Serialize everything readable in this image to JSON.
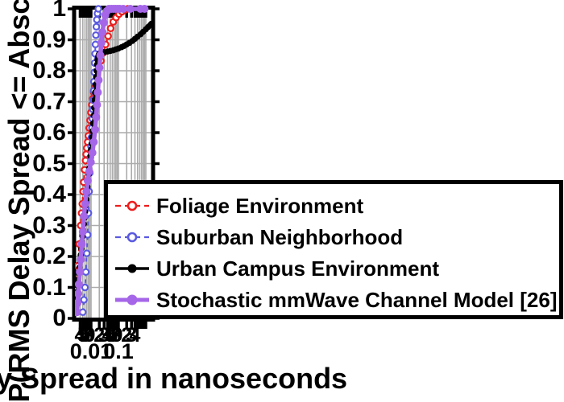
{
  "chart_data": {
    "type": "line",
    "subtype": "cdf",
    "title": "",
    "xlabel": "RMS Delay Spread in nanoseconds",
    "ylabel": "P(RMS Delay Spread <= Abscissa)",
    "grid": true,
    "x_axis": {
      "scale": "log",
      "range_ns": [
        0.0028,
        1.6
      ],
      "major_ticks": [
        0.01,
        0.1,
        1
      ],
      "major_tick_labels": [
        {
          "value": 0.01,
          "label": "0.01"
        },
        {
          "value": 0.1,
          "label": "0.1"
        }
      ],
      "minor_ticks": [
        0.004,
        0.005,
        0.006,
        0.007,
        0.008,
        0.009,
        0.02,
        0.03,
        0.04,
        0.05,
        0.06,
        0.07,
        0.08,
        0.09,
        0.2,
        0.3,
        0.4,
        0.5,
        0.6,
        0.7,
        0.8,
        0.9
      ],
      "minor_tick_labels": [
        {
          "value": 0.004,
          "label": "4"
        },
        {
          "value": 0.005,
          "label": "5"
        },
        {
          "value": 0.006,
          "label": "6"
        },
        {
          "value": 0.007,
          "label": "7"
        },
        {
          "value": 0.008,
          "label": "8"
        },
        {
          "value": 0.009,
          "label": "9"
        },
        {
          "value": 0.02,
          "label": "2"
        },
        {
          "value": 0.03,
          "label": "3"
        },
        {
          "value": 0.04,
          "label": "4"
        },
        {
          "value": 0.05,
          "label": "5"
        },
        {
          "value": 0.06,
          "label": "6"
        },
        {
          "value": 0.07,
          "label": "7"
        },
        {
          "value": 0.08,
          "label": "8"
        },
        {
          "value": 0.09,
          "label": "9"
        },
        {
          "value": 0.2,
          "label": "2"
        },
        {
          "value": 0.3,
          "label": "3"
        },
        {
          "value": 0.4,
          "label": "4"
        }
      ]
    },
    "y_axis": {
      "scale": "linear",
      "range": [
        0,
        1
      ],
      "ticks": [
        0,
        0.1,
        0.2,
        0.3,
        0.4,
        0.5,
        0.6,
        0.7,
        0.8,
        0.9,
        1
      ],
      "tick_labels": [
        "0",
        "0.1",
        "0.2",
        "0.3",
        "0.4",
        "0.5",
        "0.6",
        "0.7",
        "0.8",
        "0.9",
        "1"
      ]
    },
    "colors": {
      "foliage": "#ee1c1c",
      "suburban": "#5a5ae0",
      "urban": "#000000",
      "stochastic": "#a566e8",
      "grid": "#ababab",
      "frame": "#000000"
    },
    "legend_position": "lower-right-overlapping-plot",
    "series": [
      {
        "name": "Foliage Environment",
        "color": "#ee1c1c",
        "line": "dashed",
        "marker": "open-circle",
        "points": [
          [
            0.003,
            0.1
          ],
          [
            0.0033,
            0.17
          ],
          [
            0.0037,
            0.24
          ],
          [
            0.0042,
            0.3
          ],
          [
            0.0045,
            0.34
          ],
          [
            0.0048,
            0.37
          ],
          [
            0.0051,
            0.41
          ],
          [
            0.0054,
            0.44
          ],
          [
            0.0058,
            0.48
          ],
          [
            0.0063,
            0.51
          ],
          [
            0.0066,
            0.53
          ],
          [
            0.007,
            0.55
          ],
          [
            0.0075,
            0.57
          ],
          [
            0.008,
            0.59
          ],
          [
            0.0086,
            0.615
          ],
          [
            0.0092,
            0.64
          ],
          [
            0.0099,
            0.665
          ],
          [
            0.0107,
            0.69
          ],
          [
            0.0115,
            0.71
          ],
          [
            0.0125,
            0.73
          ],
          [
            0.0137,
            0.75
          ],
          [
            0.0152,
            0.77
          ],
          [
            0.017,
            0.79
          ],
          [
            0.0195,
            0.81
          ],
          [
            0.023,
            0.832
          ],
          [
            0.028,
            0.858
          ],
          [
            0.034,
            0.885
          ],
          [
            0.042,
            0.912
          ],
          [
            0.052,
            0.937
          ],
          [
            0.065,
            0.958
          ],
          [
            0.082,
            0.972
          ],
          [
            0.105,
            0.983
          ],
          [
            0.135,
            0.991
          ],
          [
            0.175,
            0.997
          ],
          [
            0.22,
            1.0
          ]
        ]
      },
      {
        "name": "Suburban Neighborhood",
        "color": "#5a5ae0",
        "line": "dashed",
        "marker": "open-circle",
        "points": [
          [
            0.005,
            0.02
          ],
          [
            0.0055,
            0.06
          ],
          [
            0.006,
            0.1
          ],
          [
            0.0065,
            0.15
          ],
          [
            0.007,
            0.21
          ],
          [
            0.0075,
            0.27
          ],
          [
            0.008,
            0.34
          ],
          [
            0.0085,
            0.41
          ],
          [
            0.009,
            0.47
          ],
          [
            0.0095,
            0.52
          ],
          [
            0.01,
            0.555
          ],
          [
            0.0104,
            0.585
          ],
          [
            0.0108,
            0.615
          ],
          [
            0.0112,
            0.645
          ],
          [
            0.0116,
            0.675
          ],
          [
            0.012,
            0.705
          ],
          [
            0.0124,
            0.735
          ],
          [
            0.0128,
            0.765
          ],
          [
            0.0132,
            0.795
          ],
          [
            0.0136,
            0.825
          ],
          [
            0.014,
            0.855
          ],
          [
            0.0145,
            0.885
          ],
          [
            0.015,
            0.915
          ],
          [
            0.0156,
            0.942
          ],
          [
            0.0163,
            0.965
          ],
          [
            0.0172,
            0.985
          ],
          [
            0.0185,
            1.0
          ]
        ]
      },
      {
        "name": "Urban Campus Environment",
        "color": "#000000",
        "line": "solid",
        "marker": "filled-circle",
        "points": [
          [
            0.003,
            0.065
          ],
          [
            0.0031,
            0.085
          ],
          [
            0.0032,
            0.105
          ],
          [
            0.0034,
            0.125
          ],
          [
            0.0036,
            0.145
          ],
          [
            0.0038,
            0.165
          ],
          [
            0.004,
            0.185
          ],
          [
            0.0042,
            0.205
          ],
          [
            0.0044,
            0.225
          ],
          [
            0.0047,
            0.245
          ],
          [
            0.0049,
            0.265
          ],
          [
            0.0052,
            0.285
          ],
          [
            0.0055,
            0.305
          ],
          [
            0.0058,
            0.325
          ],
          [
            0.0061,
            0.345
          ],
          [
            0.0064,
            0.365
          ],
          [
            0.0067,
            0.385
          ],
          [
            0.007,
            0.405
          ],
          [
            0.0074,
            0.425
          ],
          [
            0.0078,
            0.445
          ],
          [
            0.0082,
            0.465
          ],
          [
            0.0086,
            0.485
          ],
          [
            0.009,
            0.505
          ],
          [
            0.0095,
            0.525
          ],
          [
            0.0099,
            0.545
          ],
          [
            0.0104,
            0.565
          ],
          [
            0.0109,
            0.585
          ],
          [
            0.0114,
            0.605
          ],
          [
            0.0119,
            0.63
          ],
          [
            0.0124,
            0.655
          ],
          [
            0.0129,
            0.68
          ],
          [
            0.0134,
            0.705
          ],
          [
            0.014,
            0.73
          ],
          [
            0.0146,
            0.755
          ],
          [
            0.0152,
            0.78
          ],
          [
            0.0158,
            0.8
          ],
          [
            0.0165,
            0.82
          ],
          [
            0.0172,
            0.835
          ],
          [
            0.018,
            0.845
          ],
          [
            0.019,
            0.852
          ],
          [
            0.0205,
            0.856
          ],
          [
            0.0225,
            0.858
          ],
          [
            0.025,
            0.859
          ],
          [
            0.03,
            0.86
          ],
          [
            0.04,
            0.862
          ],
          [
            0.05,
            0.864
          ],
          [
            0.065,
            0.866
          ],
          [
            0.08,
            0.869
          ],
          [
            0.1,
            0.872
          ],
          [
            0.13,
            0.876
          ],
          [
            0.16,
            0.88
          ],
          [
            0.2,
            0.885
          ],
          [
            0.25,
            0.89
          ],
          [
            0.32,
            0.896
          ],
          [
            0.4,
            0.903
          ],
          [
            0.5,
            0.91
          ],
          [
            0.65,
            0.918
          ],
          [
            0.8,
            0.926
          ],
          [
            1.0,
            0.934
          ],
          [
            1.2,
            0.941
          ],
          [
            1.45,
            0.948
          ],
          [
            1.6,
            0.952
          ]
        ]
      },
      {
        "name": "Stochastic mmWave Channel Model [26]",
        "color": "#a566e8",
        "line": "solid-thick",
        "marker": "filled-circle-large",
        "points": [
          [
            0.003,
            0.02
          ],
          [
            0.0032,
            0.05
          ],
          [
            0.0034,
            0.08
          ],
          [
            0.0036,
            0.11
          ],
          [
            0.0039,
            0.15
          ],
          [
            0.0042,
            0.19
          ],
          [
            0.0046,
            0.24
          ],
          [
            0.005,
            0.28
          ],
          [
            0.0055,
            0.33
          ],
          [
            0.0061,
            0.37
          ],
          [
            0.0068,
            0.41
          ],
          [
            0.0076,
            0.445
          ],
          [
            0.0086,
            0.475
          ],
          [
            0.0098,
            0.505
          ],
          [
            0.0112,
            0.535
          ],
          [
            0.0126,
            0.57
          ],
          [
            0.014,
            0.61
          ],
          [
            0.0153,
            0.65
          ],
          [
            0.0165,
            0.69
          ],
          [
            0.0177,
            0.73
          ],
          [
            0.0189,
            0.77
          ],
          [
            0.0202,
            0.81
          ],
          [
            0.0218,
            0.85
          ],
          [
            0.0238,
            0.89
          ],
          [
            0.0262,
            0.925
          ],
          [
            0.0292,
            0.955
          ],
          [
            0.033,
            0.98
          ],
          [
            0.038,
            0.993
          ],
          [
            0.045,
            1.0
          ],
          [
            0.055,
            1.0
          ],
          [
            0.066,
            1.0
          ],
          [
            0.079,
            1.0
          ],
          [
            0.094,
            1.0
          ],
          [
            0.112,
            1.0
          ],
          [
            0.15,
            1.0
          ],
          [
            0.27,
            1.0
          ],
          [
            0.63,
            1.0
          ],
          [
            0.9,
            1.0
          ]
        ]
      }
    ]
  },
  "legend": {
    "entries": [
      {
        "label": "Foliage Environment"
      },
      {
        "label": "Suburban Neighborhood"
      },
      {
        "label": "Urban Campus Environment"
      },
      {
        "label": "Stochastic mmWave Channel Model [26]"
      }
    ]
  }
}
